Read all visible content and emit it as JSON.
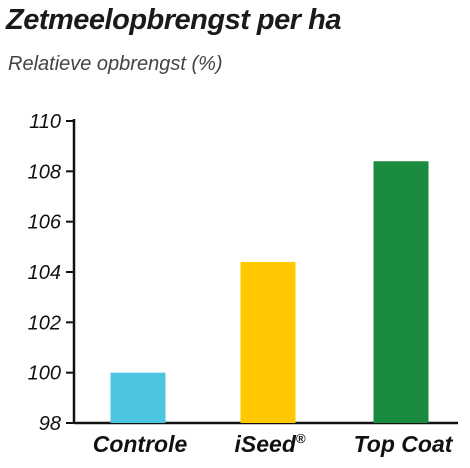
{
  "chart_data": {
    "type": "bar",
    "title": "Zetmeelopbrengst per ha",
    "subtitle": "Relatieve opbrengst (%)",
    "xlabel": "",
    "ylabel": "",
    "categories": [
      "Controle",
      "iSeed®",
      "Top Coat"
    ],
    "values": [
      100,
      104.4,
      108.4
    ],
    "colors": [
      "#4dc4e0",
      "#ffc800",
      "#1a8a3e"
    ],
    "ylim": [
      98,
      110
    ],
    "yticks": [
      98,
      100,
      102,
      104,
      106,
      108,
      110
    ],
    "grid": false,
    "legend": "none"
  }
}
